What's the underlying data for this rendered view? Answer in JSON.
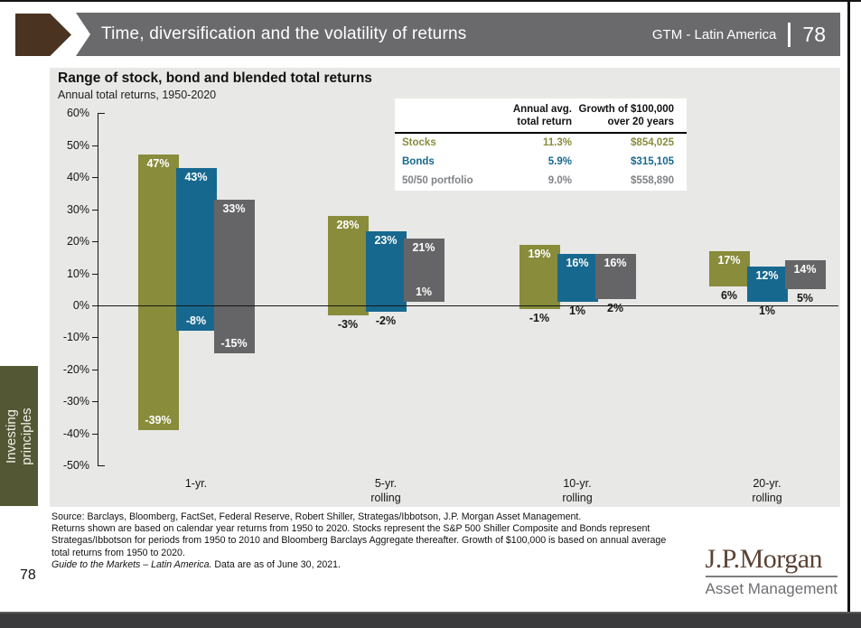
{
  "header": {
    "title": "Time, diversification and the volatility of returns",
    "program_label": "GTM - Latin America",
    "page_number": "78"
  },
  "sidebar_tab": {
    "line1": "Investing",
    "line2": "principles"
  },
  "chart": {
    "title": "Range of stock, bond and blended total returns",
    "subtitle": "Annual total returns, 1950-2020"
  },
  "stats_table": {
    "col_annual_header": [
      "Annual avg.",
      "total return"
    ],
    "col_growth_header": [
      "Growth of $100,000",
      "over 20 years"
    ],
    "rows": [
      {
        "name": "Stocks",
        "annual_avg_total_return": "11.3%",
        "growth_of_100000": "$854,025",
        "color": "#888C3B"
      },
      {
        "name": "Bonds",
        "annual_avg_total_return": "5.9%",
        "growth_of_100000": "$315,105",
        "color": "#17688F"
      },
      {
        "name": "50/50 portfolio",
        "annual_avg_total_return": "9.0%",
        "growth_of_100000": "$558,890",
        "color": "#808285"
      }
    ]
  },
  "chart_data": {
    "type": "bar",
    "subtype": "floating-range-bars",
    "title": "Range of stock, bond and blended total returns",
    "subtitle": "Annual total returns, 1950-2020",
    "ylim": [
      -50,
      60
    ],
    "ytick_step": 10,
    "ytick_suffix": "%",
    "grid": false,
    "categories": [
      "1-yr.",
      "5-yr. rolling",
      "10-yr. rolling",
      "20-yr. rolling"
    ],
    "series_meta": [
      {
        "name": "Stocks",
        "color": "#888C3B"
      },
      {
        "name": "Bonds",
        "color": "#17688F"
      },
      {
        "name": "50/50 portfolio",
        "color": "#656567"
      }
    ],
    "groups": [
      {
        "category_lines": [
          "1-yr."
        ],
        "bars": [
          {
            "series": "Stocks",
            "max": 47,
            "min": -39,
            "min_label_position": "inside"
          },
          {
            "series": "Bonds",
            "max": 43,
            "min": -8,
            "min_label_position": "inside"
          },
          {
            "series": "50/50 portfolio",
            "max": 33,
            "min": -15,
            "min_label_position": "inside"
          }
        ]
      },
      {
        "category_lines": [
          "5-yr.",
          "rolling"
        ],
        "bars": [
          {
            "series": "Stocks",
            "max": 28,
            "min": -3,
            "min_label_position": "below"
          },
          {
            "series": "Bonds",
            "max": 23,
            "min": -2,
            "min_label_position": "below"
          },
          {
            "series": "50/50 portfolio",
            "max": 21,
            "min": 1,
            "min_label_position": "inside"
          }
        ]
      },
      {
        "category_lines": [
          "10-yr.",
          "rolling"
        ],
        "bars": [
          {
            "series": "Stocks",
            "max": 19,
            "min": -1,
            "min_label_position": "below"
          },
          {
            "series": "Bonds",
            "max": 16,
            "min": 1,
            "min_label_position": "below"
          },
          {
            "series": "50/50 portfolio",
            "max": 16,
            "min": 2,
            "min_label_position": "below"
          }
        ]
      },
      {
        "category_lines": [
          "20-yr.",
          "rolling"
        ],
        "bars": [
          {
            "series": "Stocks",
            "max": 17,
            "min": 6,
            "min_label_position": "below"
          },
          {
            "series": "Bonds",
            "max": 12,
            "min": 1,
            "min_label_position": "below"
          },
          {
            "series": "50/50 portfolio",
            "max": 14,
            "min": 5,
            "min_label_position": "below"
          }
        ]
      }
    ]
  },
  "footnote": {
    "line1": "Source: Barclays, Bloomberg, FactSet, Federal Reserve, Robert Shiller, Strategas/Ibbotson, J.P. Morgan Asset Management.",
    "line2": "Returns shown are based on calendar year returns from 1950 to 2020. Stocks represent the S&P 500 Shiller Composite and Bonds represent",
    "line3": "Strategas/Ibbotson for periods from 1950 to 2010 and Bloomberg Barclays Aggregate thereafter. Growth of $100,000 is based on annual average",
    "line4": "total returns from 1950 to 2020.",
    "line5_italic": "Guide to the Markets – Latin America.",
    "line5_rest": " Data are as of June 30, 2021."
  },
  "footer": {
    "page_number": "78"
  },
  "logo": {
    "brand": "J.P.Morgan",
    "division": "Asset Management"
  },
  "colors": {
    "stocks": "#888C3B",
    "bonds": "#17688F",
    "blend_50_50": "#656567",
    "header_bar": "#6A6A6D",
    "accent_brown": "#4B3322",
    "panel_background": "#E8E8E6",
    "sidebar_olive": "#545733"
  }
}
